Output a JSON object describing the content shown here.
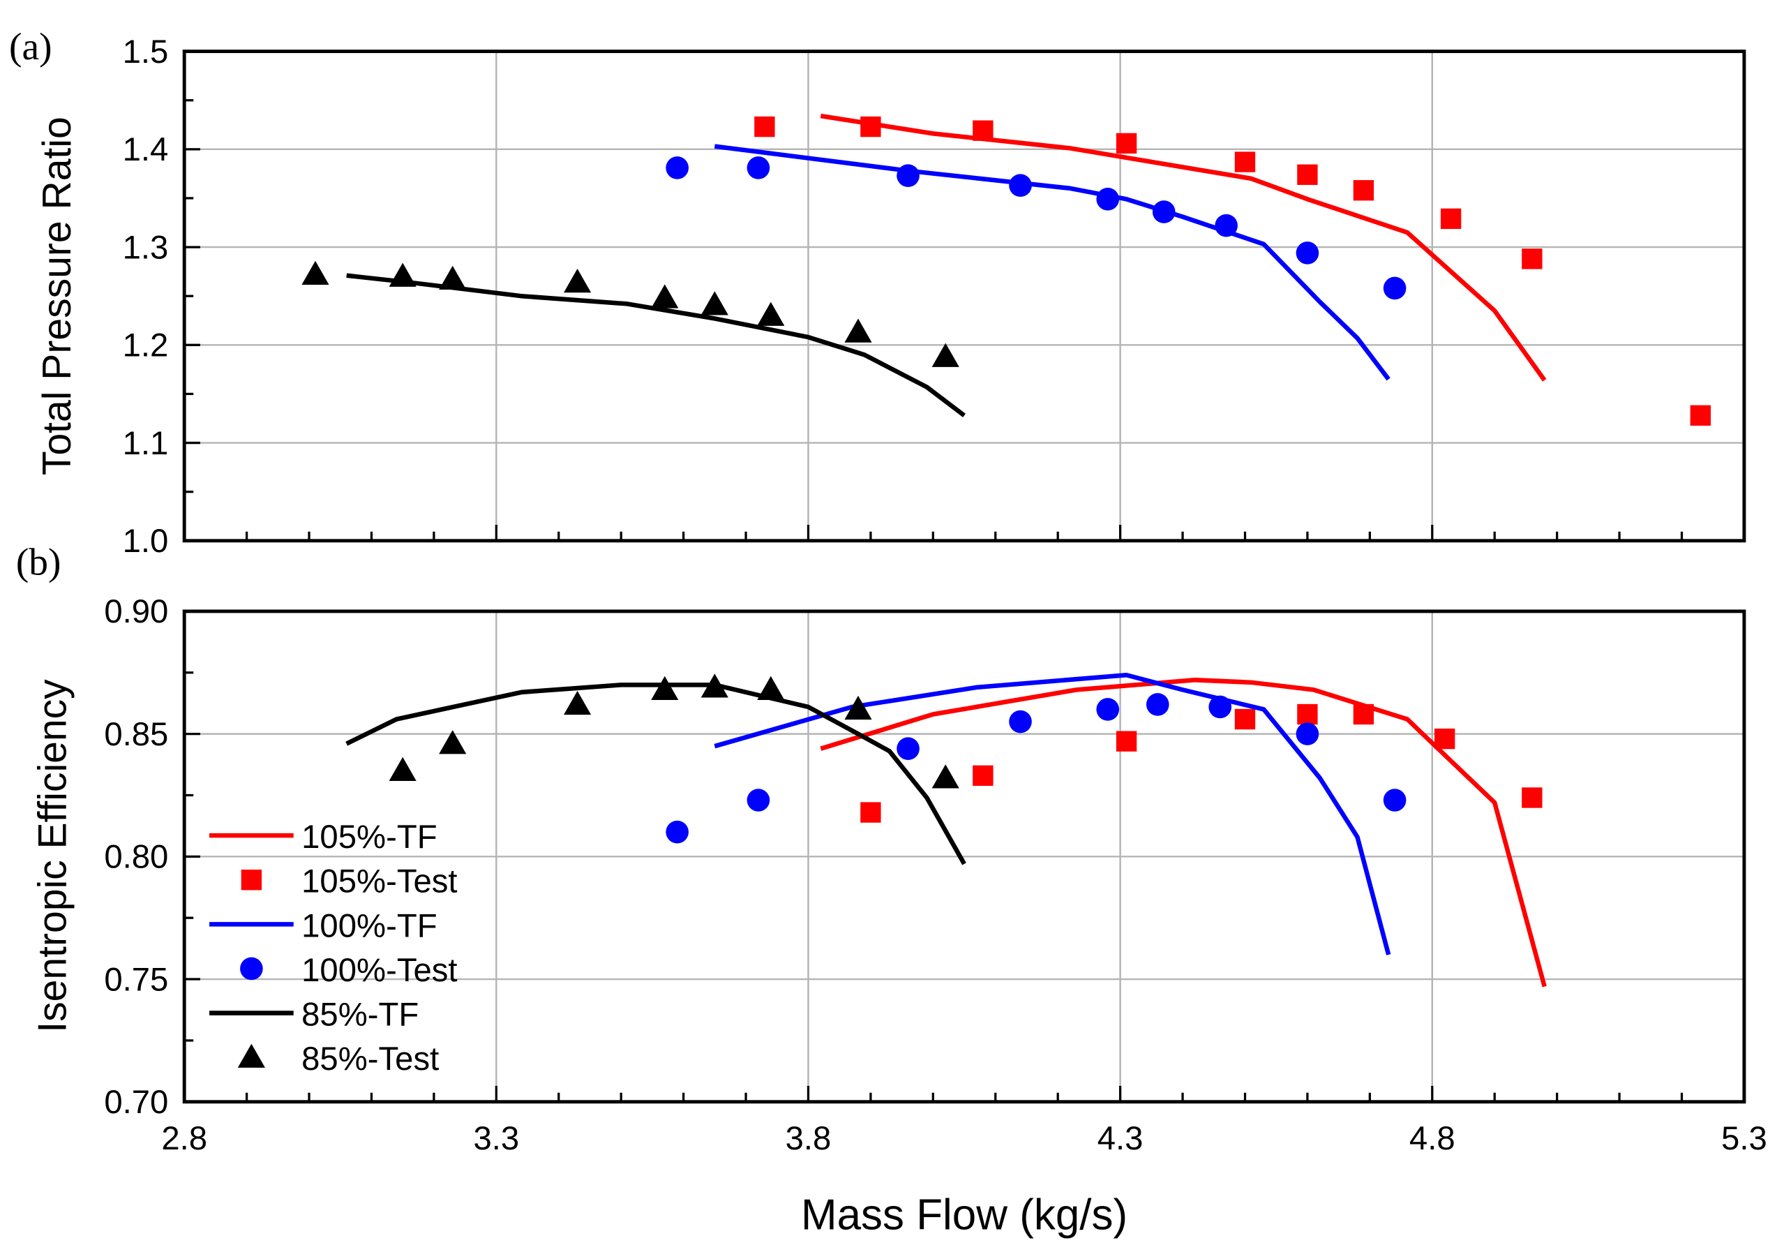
{
  "colors": {
    "105": "#ff0000",
    "100": "#0000ff",
    "85": "#000000",
    "grid": "#b4b4b4"
  },
  "chart_data": [
    {
      "type": "line",
      "panel_label": "(a)",
      "ylabel": "Total Pressure Ratio",
      "xlabel": "Mass Flow (kg/s)",
      "xlim": [
        2.8,
        5.3
      ],
      "ylim": [
        1.0,
        1.5
      ],
      "xticks": [
        "2.8",
        "3.3",
        "3.8",
        "4.3",
        "4.8",
        "5.3"
      ],
      "yticks": [
        "1.0",
        "1.1",
        "1.2",
        "1.3",
        "1.4",
        "1.5"
      ],
      "grid": true,
      "series": [
        {
          "name": "105%-TF",
          "kind": "line",
          "color": "#ff0000",
          "x": [
            3.82,
            4.0,
            4.22,
            4.51,
            4.6,
            4.76,
            4.9,
            4.98
          ],
          "y": [
            1.434,
            1.416,
            1.401,
            1.37,
            1.349,
            1.315,
            1.235,
            1.164
          ]
        },
        {
          "name": "105%-Test",
          "kind": "square",
          "color": "#ff0000",
          "x": [
            3.73,
            3.9,
            4.08,
            4.31,
            4.5,
            4.6,
            4.69,
            4.83,
            4.96,
            5.23
          ],
          "y": [
            1.423,
            1.423,
            1.419,
            1.406,
            1.387,
            1.374,
            1.358,
            1.329,
            1.288,
            1.128
          ]
        },
        {
          "name": "100%-TF",
          "kind": "line",
          "color": "#0000ff",
          "x": [
            3.65,
            3.96,
            4.22,
            4.31,
            4.4,
            4.53,
            4.62,
            4.68,
            4.73
          ],
          "y": [
            1.403,
            1.378,
            1.36,
            1.349,
            1.331,
            1.303,
            1.244,
            1.207,
            1.165
          ]
        },
        {
          "name": "100%-Test",
          "kind": "circle",
          "color": "#0000ff",
          "x": [
            3.59,
            3.72,
            3.96,
            4.14,
            4.28,
            4.37,
            4.47,
            4.6,
            4.74
          ],
          "y": [
            1.381,
            1.381,
            1.373,
            1.363,
            1.349,
            1.336,
            1.322,
            1.294,
            1.258
          ]
        },
        {
          "name": "85%-TF",
          "kind": "line",
          "color": "#000000",
          "x": [
            3.06,
            3.16,
            3.34,
            3.51,
            3.65,
            3.8,
            3.89,
            3.99,
            4.05
          ],
          "y": [
            1.271,
            1.264,
            1.25,
            1.242,
            1.227,
            1.208,
            1.19,
            1.157,
            1.128
          ]
        },
        {
          "name": "85%-Test",
          "kind": "triangle",
          "color": "#000000",
          "x": [
            3.01,
            3.15,
            3.23,
            3.43,
            3.57,
            3.65,
            3.74,
            3.88,
            4.02
          ],
          "y": [
            1.272,
            1.27,
            1.267,
            1.264,
            1.248,
            1.241,
            1.23,
            1.213,
            1.188
          ]
        }
      ]
    },
    {
      "type": "line",
      "panel_label": "(b)",
      "ylabel": "Isentropic Efficiency",
      "xlabel": "Mass Flow (kg/s)",
      "xlim": [
        2.8,
        5.3
      ],
      "ylim": [
        0.7,
        0.9
      ],
      "xticks": [
        "2.8",
        "3.3",
        "3.8",
        "4.3",
        "4.8",
        "5.3"
      ],
      "yticks": [
        "0.70",
        "0.75",
        "0.80",
        "0.85",
        "0.90"
      ],
      "grid": true,
      "legend_position": "bottom-left",
      "series": [
        {
          "name": "105%-TF",
          "kind": "line",
          "color": "#ff0000",
          "x": [
            3.82,
            4.0,
            4.23,
            4.42,
            4.51,
            4.61,
            4.76,
            4.9,
            4.98
          ],
          "y": [
            0.844,
            0.858,
            0.868,
            0.872,
            0.871,
            0.868,
            0.856,
            0.822,
            0.747
          ]
        },
        {
          "name": "105%-Test",
          "kind": "square",
          "color": "#ff0000",
          "x": [
            3.9,
            4.08,
            4.31,
            4.5,
            4.6,
            4.69,
            4.82,
            4.96
          ],
          "y": [
            0.818,
            0.833,
            0.847,
            0.856,
            0.858,
            0.858,
            0.848,
            0.824
          ]
        },
        {
          "name": "100%-TF",
          "kind": "line",
          "color": "#0000ff",
          "x": [
            3.65,
            3.87,
            4.07,
            4.31,
            4.4,
            4.53,
            4.62,
            4.68,
            4.73
          ],
          "y": [
            0.845,
            0.861,
            0.869,
            0.874,
            0.868,
            0.86,
            0.832,
            0.808,
            0.76
          ]
        },
        {
          "name": "100%-Test",
          "kind": "circle",
          "color": "#0000ff",
          "x": [
            3.59,
            3.72,
            3.96,
            4.14,
            4.28,
            4.36,
            4.46,
            4.6,
            4.74
          ],
          "y": [
            0.81,
            0.823,
            0.844,
            0.855,
            0.86,
            0.862,
            0.861,
            0.85,
            0.823
          ]
        },
        {
          "name": "85%-TF",
          "kind": "line",
          "color": "#000000",
          "x": [
            3.06,
            3.14,
            3.34,
            3.5,
            3.65,
            3.8,
            3.88,
            3.93,
            3.99,
            4.05
          ],
          "y": [
            0.846,
            0.856,
            0.867,
            0.87,
            0.87,
            0.861,
            0.85,
            0.843,
            0.824,
            0.797
          ]
        },
        {
          "name": "85%-Test",
          "kind": "triangle",
          "color": "#000000",
          "x": [
            3.15,
            3.23,
            3.43,
            3.57,
            3.65,
            3.74,
            3.88,
            4.02
          ],
          "y": [
            0.835,
            0.846,
            0.862,
            0.868,
            0.869,
            0.868,
            0.86,
            0.832
          ]
        }
      ]
    }
  ]
}
